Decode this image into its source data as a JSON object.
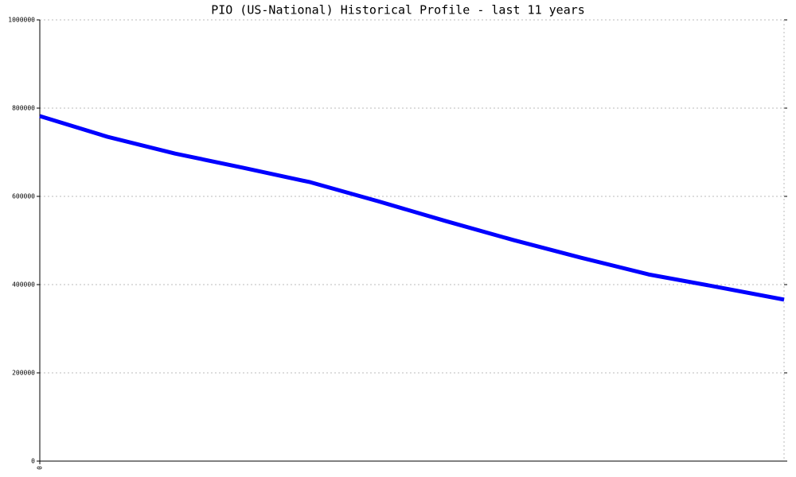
{
  "chart_data": {
    "type": "line",
    "title": "PIO (US-National) Historical Profile - last 11 years",
    "categories": [
      "0",
      null,
      null,
      null,
      null,
      null,
      null,
      null,
      null,
      null,
      null,
      null
    ],
    "series": [
      {
        "name": "PIO",
        "color": "#0000ff",
        "values": [
          782000,
          735000,
          697000,
          665000,
          632000,
          589000,
          544000,
          501000,
          461000,
          423000,
          395000,
          366000
        ]
      }
    ],
    "ylim": [
      0,
      1000000
    ],
    "yticks": [
      0,
      200000,
      400000,
      600000,
      800000,
      1000000
    ],
    "grid": true
  }
}
